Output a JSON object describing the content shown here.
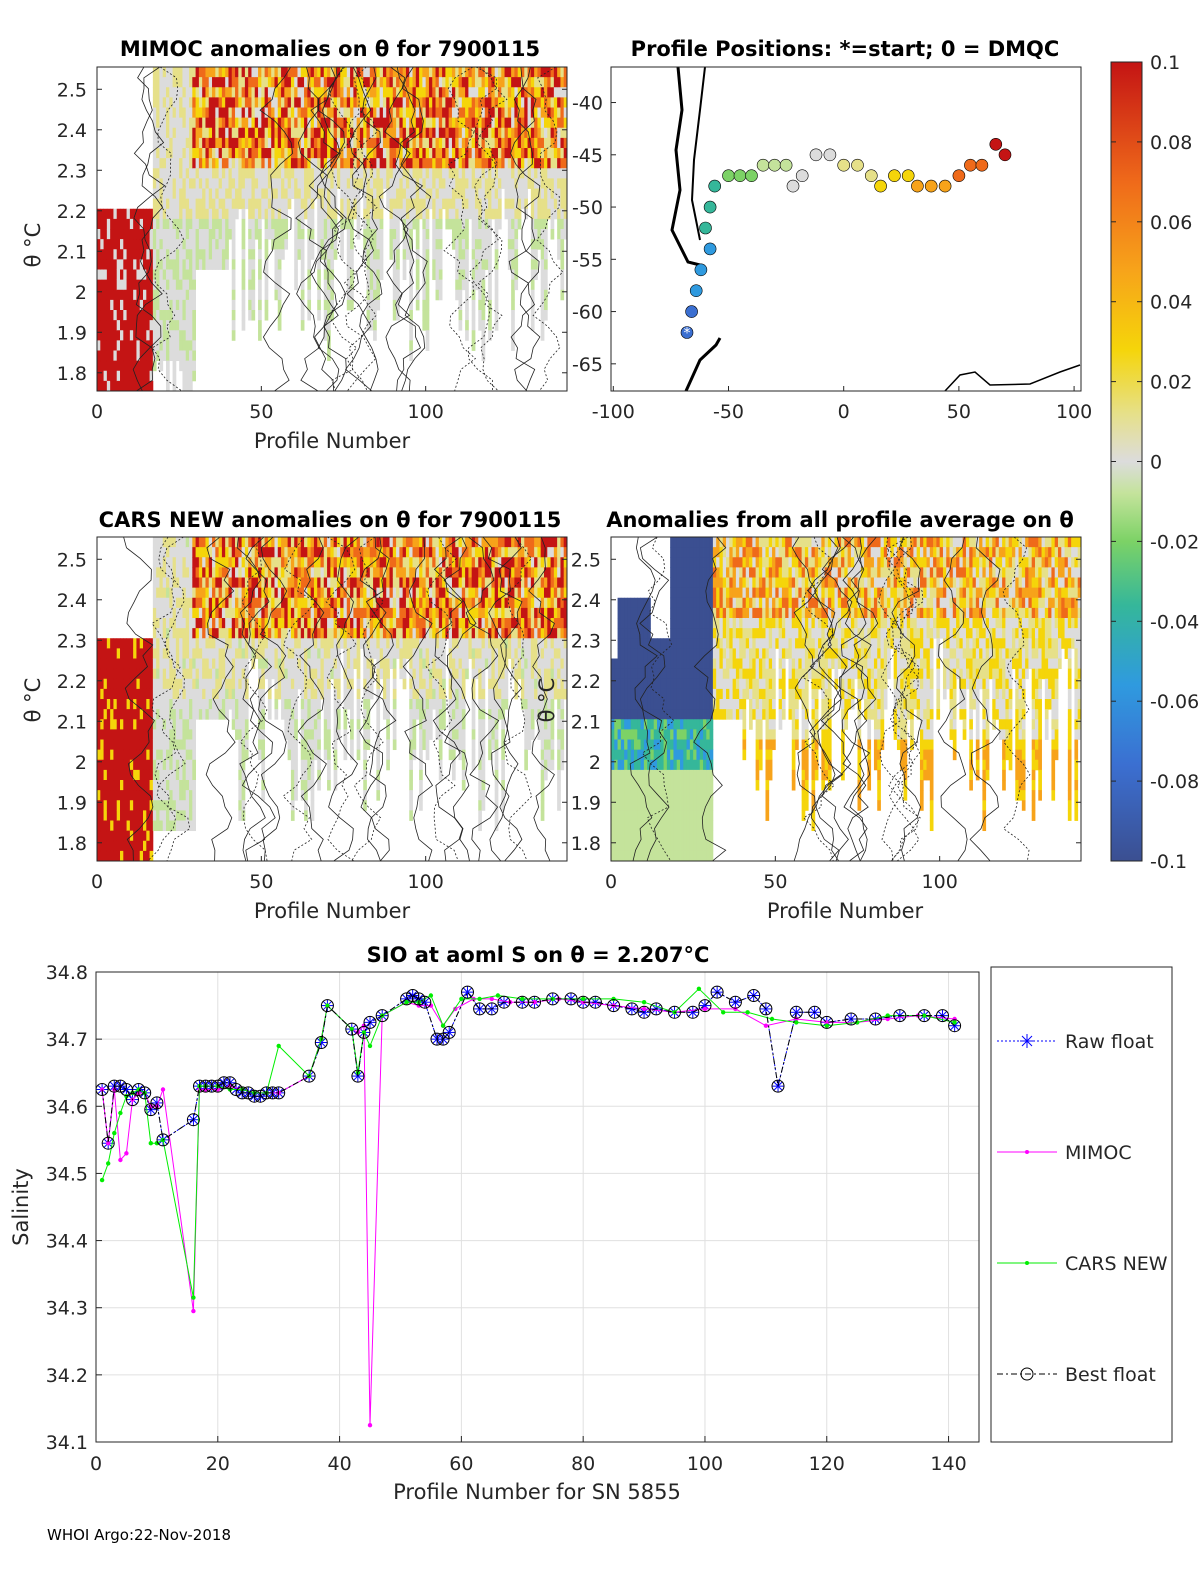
{
  "footer": "WHOI Argo:22-Nov-2018",
  "colors": {
    "raw": "#0000ff",
    "mimoc": "#ff00ff",
    "cars": "#00ee00",
    "best": "#000000"
  },
  "panels": {
    "mimoc": {
      "title": "MIMOC anomalies on θ  for 7900115",
      "xlabel": "Profile Number",
      "ylabel": "θ °C",
      "xticks": [
        "0",
        "50",
        "100"
      ],
      "yticks": [
        "2.5",
        "2.4",
        "2.3",
        "2.2",
        "2.1",
        "2",
        "1.9",
        "1.8"
      ]
    },
    "positions": {
      "title": "Profile Positions: *=start; 0 = DMQC",
      "xticks": [
        "-100",
        "-50",
        "0",
        "50",
        "100"
      ],
      "yticks": [
        "-40",
        "-45",
        "-50",
        "-55",
        "-60",
        "-65"
      ]
    },
    "cars": {
      "title": "CARS NEW anomalies on θ for 7900115",
      "xlabel": "Profile Number",
      "ylabel": "θ °C",
      "xticks": [
        "0",
        "50",
        "100"
      ],
      "yticks": [
        "2.5",
        "2.4",
        "2.3",
        "2.2",
        "2.1",
        "2",
        "1.9",
        "1.8"
      ]
    },
    "allavg": {
      "title": "Anomalies from all profile average on θ",
      "xlabel": "Profile Number",
      "ylabel": "θ °C",
      "xticks": [
        "0",
        "50",
        "100"
      ],
      "yticks": [
        "2.5",
        "2.4",
        "2.3",
        "2.2",
        "2.1",
        "2",
        "1.9",
        "1.8"
      ]
    },
    "colorbar": {
      "ticks": [
        "0.1",
        "0.08",
        "0.06",
        "0.04",
        "0.02",
        "0",
        "-0.02",
        "-0.04",
        "-0.06",
        "-0.08",
        "-0.1"
      ]
    }
  },
  "legend": {
    "items": [
      "Raw float",
      "MIMOC",
      "CARS NEW",
      "Best float"
    ]
  },
  "chart_data": {
    "type": "line",
    "title": "SIO at aoml S on θ = 2.207°C",
    "xlabel": "Profile Number for SN 5855",
    "ylabel": "Salinity",
    "xlim": [
      0,
      145
    ],
    "ylim": [
      34.1,
      34.8
    ],
    "xticks": [
      "0",
      "20",
      "40",
      "60",
      "80",
      "100",
      "120",
      "140"
    ],
    "yticks": [
      "34.8",
      "34.7",
      "34.6",
      "34.5",
      "34.4",
      "34.3",
      "34.2",
      "34.1"
    ],
    "series": [
      {
        "name": "Raw float",
        "x": [
          1,
          2,
          3,
          4,
          5,
          6,
          7,
          8,
          9,
          10,
          11,
          16,
          17,
          18,
          19,
          20,
          21,
          22,
          23,
          24,
          25,
          26,
          27,
          28,
          29,
          30,
          35,
          37,
          38,
          42,
          43,
          44,
          45,
          47,
          51,
          52,
          53,
          54,
          56,
          57,
          58,
          61,
          63,
          65,
          67,
          70,
          72,
          75,
          78,
          80,
          82,
          85,
          88,
          90,
          92,
          95,
          98,
          100,
          102,
          105,
          108,
          110,
          112,
          115,
          118,
          120,
          124,
          128,
          132,
          136,
          139,
          141
        ],
        "y": [
          34.625,
          34.545,
          34.63,
          34.63,
          34.625,
          34.61,
          34.625,
          34.62,
          34.595,
          34.605,
          34.55,
          34.58,
          34.63,
          34.63,
          34.63,
          34.63,
          34.635,
          34.635,
          34.625,
          34.62,
          34.62,
          34.615,
          34.615,
          34.62,
          34.62,
          34.62,
          34.645,
          34.695,
          34.75,
          34.715,
          34.645,
          34.71,
          34.725,
          34.735,
          34.76,
          34.765,
          34.76,
          34.755,
          34.7,
          34.7,
          34.71,
          34.77,
          34.745,
          34.745,
          34.755,
          34.755,
          34.755,
          34.76,
          34.76,
          34.755,
          34.755,
          34.75,
          34.745,
          34.74,
          34.745,
          34.74,
          34.74,
          34.75,
          34.77,
          34.755,
          34.765,
          34.745,
          34.63,
          34.74,
          34.74,
          34.725,
          34.73,
          34.73,
          34.735,
          34.735,
          34.735,
          34.72
        ]
      },
      {
        "name": "MIMOC",
        "x": [
          1,
          2,
          3,
          4,
          5,
          6,
          7,
          8,
          9,
          10,
          11,
          16,
          17,
          18,
          20,
          22,
          24,
          26,
          28,
          30,
          35,
          37,
          38,
          42,
          43,
          44,
          45,
          47,
          51,
          53,
          55,
          57,
          59,
          62,
          65,
          68,
          72,
          76,
          80,
          85,
          90,
          95,
          100,
          105,
          110,
          115,
          120,
          125,
          130,
          135,
          141
        ],
        "y": [
          34.625,
          34.545,
          34.625,
          34.52,
          34.53,
          34.61,
          34.62,
          34.62,
          34.6,
          34.6,
          34.625,
          34.295,
          34.625,
          34.625,
          34.625,
          34.63,
          34.625,
          34.62,
          34.62,
          34.62,
          34.645,
          34.7,
          34.75,
          34.715,
          34.71,
          34.72,
          34.125,
          34.735,
          34.755,
          34.75,
          34.75,
          34.72,
          34.745,
          34.76,
          34.76,
          34.755,
          34.755,
          34.76,
          34.755,
          34.75,
          34.745,
          34.74,
          34.745,
          34.745,
          34.72,
          34.73,
          34.725,
          34.725,
          34.73,
          34.735,
          34.73
        ]
      },
      {
        "name": "CARS NEW",
        "x": [
          1,
          2,
          3,
          4,
          5,
          6,
          7,
          8,
          9,
          10,
          11,
          16,
          17,
          18,
          20,
          22,
          24,
          26,
          28,
          30,
          35,
          37,
          38,
          42,
          43,
          44,
          45,
          47,
          51,
          53,
          55,
          57,
          60,
          63,
          66,
          70,
          75,
          80,
          85,
          90,
          95,
          99,
          103,
          107,
          111,
          115,
          120,
          125,
          130,
          136,
          141
        ],
        "y": [
          34.49,
          34.515,
          34.56,
          34.59,
          34.615,
          34.62,
          34.625,
          34.62,
          34.545,
          34.545,
          34.55,
          34.315,
          34.63,
          34.63,
          34.63,
          34.625,
          34.625,
          34.62,
          34.62,
          34.69,
          34.645,
          34.7,
          34.75,
          34.715,
          34.65,
          34.71,
          34.69,
          34.735,
          34.755,
          34.755,
          34.765,
          34.72,
          34.76,
          34.76,
          34.765,
          34.76,
          34.76,
          34.76,
          34.76,
          34.755,
          34.74,
          34.775,
          34.74,
          34.74,
          34.73,
          34.725,
          34.72,
          34.725,
          34.735,
          34.735,
          34.725
        ]
      },
      {
        "name": "Best float",
        "x": [
          1,
          2,
          3,
          4,
          5,
          6,
          7,
          8,
          9,
          10,
          11,
          16,
          17,
          18,
          19,
          20,
          21,
          22,
          23,
          24,
          25,
          26,
          27,
          28,
          29,
          30,
          35,
          37,
          38,
          42,
          43,
          44,
          45,
          47,
          51,
          52,
          53,
          54,
          56,
          57,
          58,
          61,
          63,
          65,
          67,
          70,
          72,
          75,
          78,
          80,
          82,
          85,
          88,
          90,
          92,
          95,
          98,
          100,
          102,
          105,
          108,
          110,
          112,
          115,
          118,
          120,
          124,
          128,
          132,
          136,
          139,
          141
        ],
        "y": [
          34.625,
          34.545,
          34.63,
          34.63,
          34.625,
          34.61,
          34.625,
          34.62,
          34.595,
          34.605,
          34.55,
          34.58,
          34.63,
          34.63,
          34.63,
          34.63,
          34.635,
          34.635,
          34.625,
          34.62,
          34.62,
          34.615,
          34.615,
          34.62,
          34.62,
          34.62,
          34.645,
          34.695,
          34.75,
          34.715,
          34.645,
          34.71,
          34.725,
          34.735,
          34.76,
          34.765,
          34.76,
          34.755,
          34.7,
          34.7,
          34.71,
          34.77,
          34.745,
          34.745,
          34.755,
          34.755,
          34.755,
          34.76,
          34.76,
          34.755,
          34.755,
          34.75,
          34.745,
          34.74,
          34.745,
          34.74,
          34.74,
          34.75,
          34.77,
          34.755,
          34.765,
          34.745,
          34.63,
          34.74,
          34.74,
          34.725,
          34.73,
          34.73,
          34.735,
          34.735,
          34.735,
          34.72
        ]
      }
    ]
  }
}
